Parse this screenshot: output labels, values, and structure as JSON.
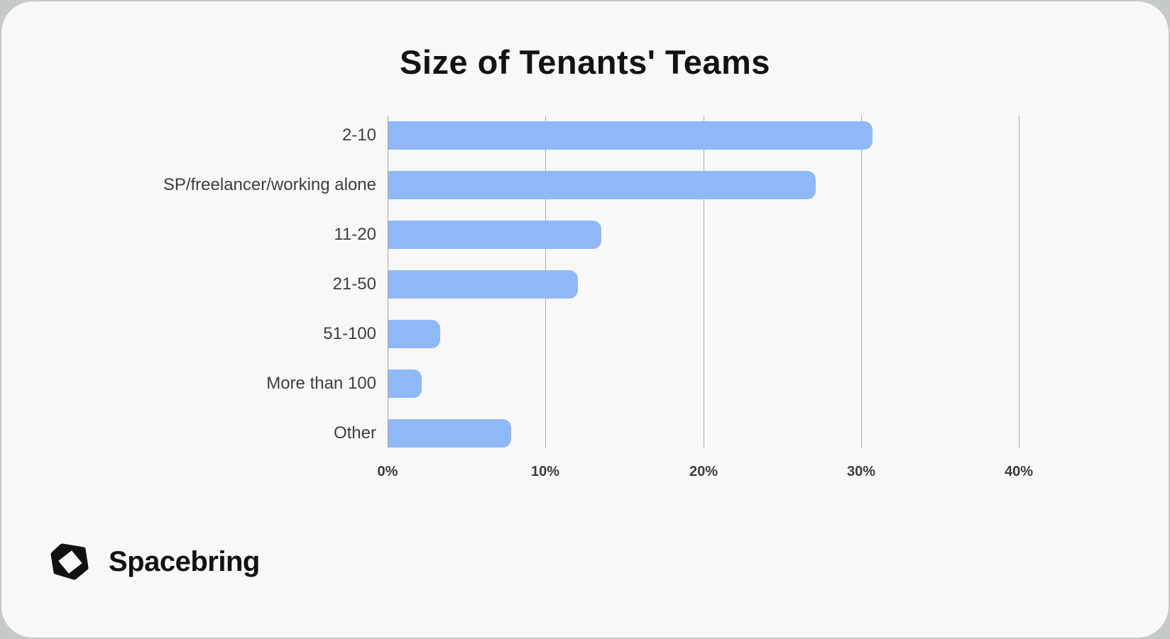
{
  "page": {
    "background_color": "#c5c9c8",
    "card_color": "#f8f8f8"
  },
  "chart_data": {
    "type": "bar",
    "orientation": "horizontal",
    "title": "Size of Tenants' Teams",
    "categories": [
      "2-10",
      "SP/freelancer/working alone",
      "11-20",
      "21-50",
      "51-100",
      "More than 100",
      "Other"
    ],
    "values": [
      30.7,
      27.1,
      13.5,
      12.0,
      3.3,
      2.1,
      7.8
    ],
    "value_unit": "%",
    "x_ticks": [
      "0%",
      "10%",
      "20%",
      "30%",
      "40%"
    ],
    "x_tick_values": [
      0,
      10,
      20,
      30,
      40
    ],
    "xlim": [
      0,
      40
    ],
    "bar_color": "#8fb8f7",
    "gridline_color": "#ababab",
    "grid": "vertical",
    "legend_position": "none"
  },
  "footer": {
    "brand": "Spacebring",
    "logo_icon": "spacebring-cube-icon"
  }
}
